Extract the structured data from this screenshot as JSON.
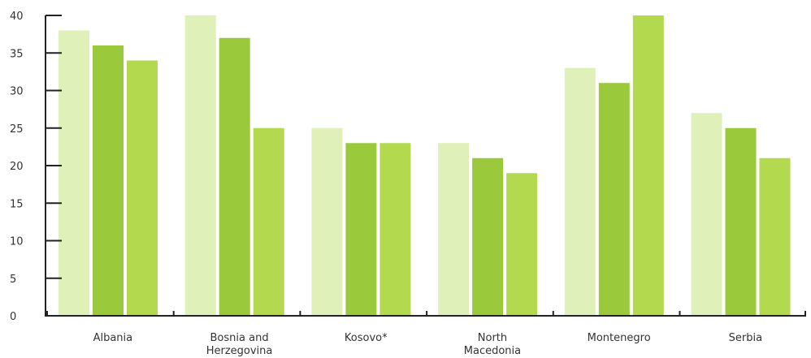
{
  "chart_data": {
    "type": "bar",
    "categories": [
      [
        "Albania"
      ],
      [
        "Bosnia and",
        "Herzegovina"
      ],
      [
        "Kosovo*"
      ],
      [
        "North",
        "Macedonia"
      ],
      [
        "Montenegro"
      ],
      [
        "Serbia"
      ]
    ],
    "series": [
      {
        "values": [
          38,
          40,
          25,
          23,
          33,
          27
        ],
        "color": "#dff0b8"
      },
      {
        "values": [
          36,
          37,
          23,
          21,
          31,
          25
        ],
        "color": "#9bc93c"
      },
      {
        "values": [
          34,
          25,
          23,
          19,
          40,
          21
        ],
        "color": "#b3d94f"
      }
    ],
    "ylim": [
      0,
      40
    ],
    "yticks": [
      0,
      5,
      10,
      15,
      20,
      25,
      30,
      35,
      40
    ],
    "grid": false,
    "axis_color": "#222222"
  }
}
